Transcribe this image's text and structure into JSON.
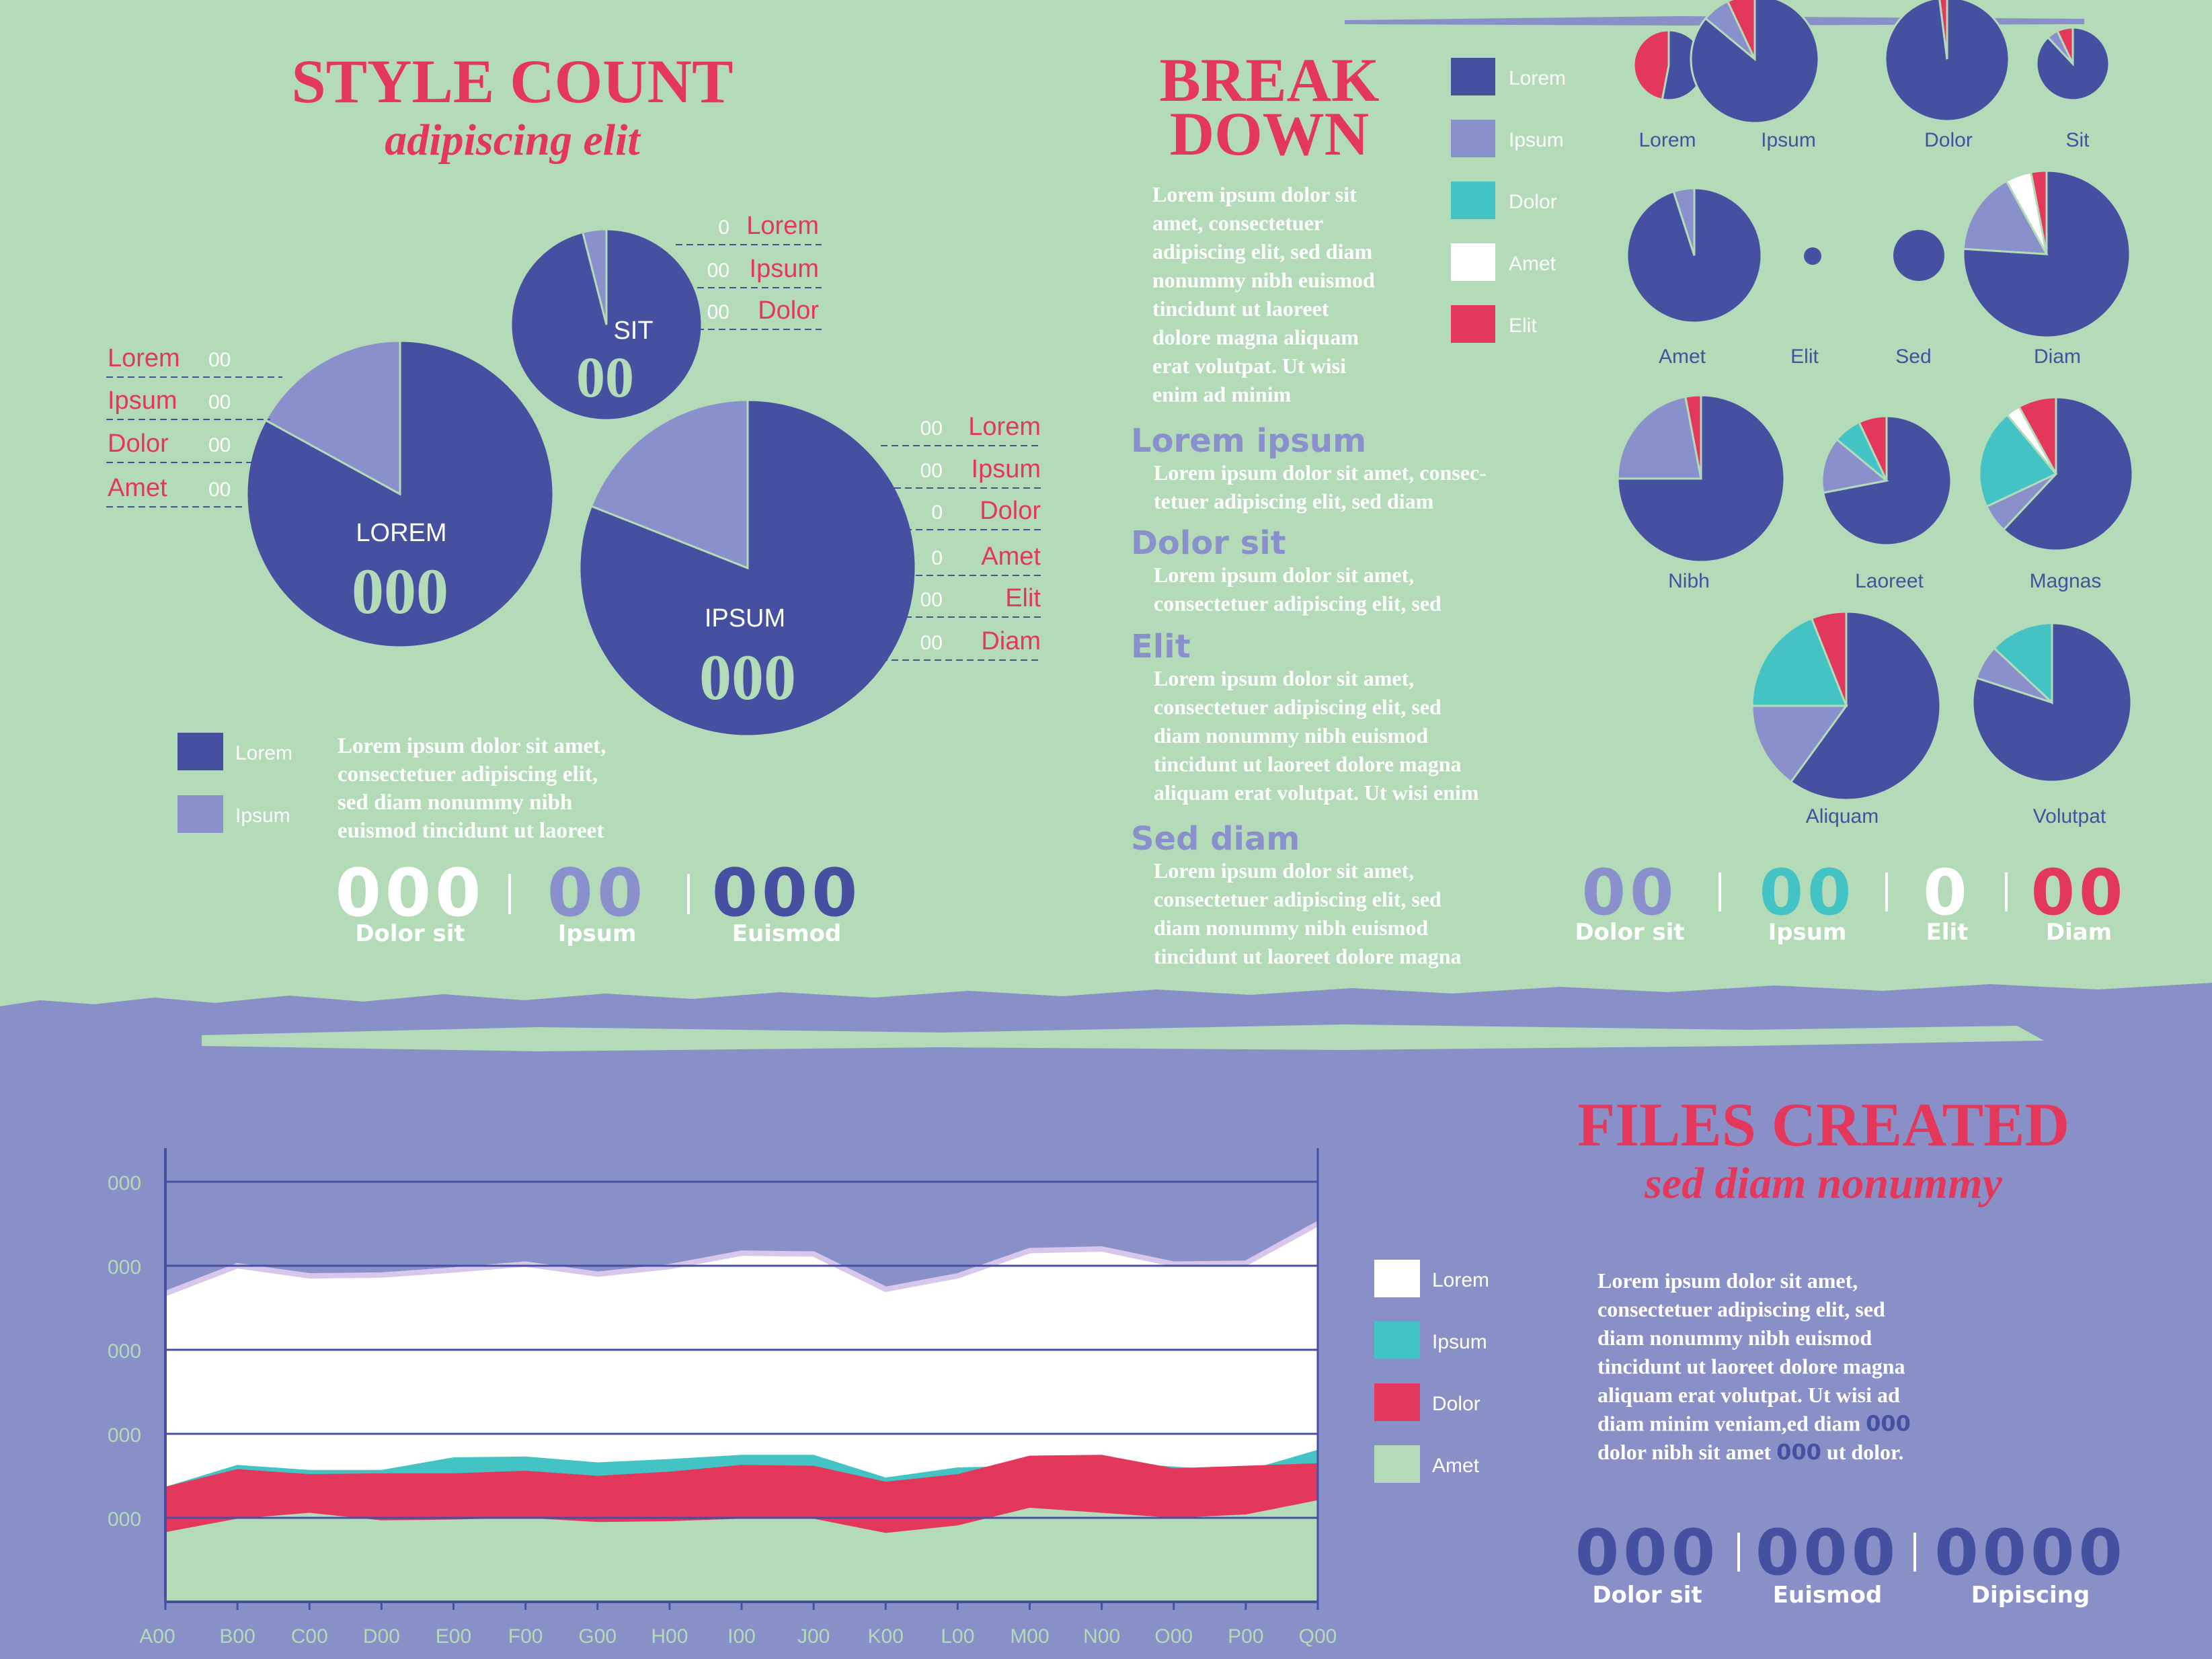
{
  "colors": {
    "bg_top": "#b3dbb7",
    "bg_bottom": "#8990c8",
    "dark_blue": "#4650a0",
    "light_blue": "#8a90cc",
    "teal": "#43c3c3",
    "red": "#e3385c",
    "white": "#ffffff",
    "green": "#b3dbb7"
  },
  "style_count": {
    "title": "STYLE COUNT",
    "subtitle": "adipiscing elit",
    "pie_lorem": {
      "label": "LOREM",
      "value": "000"
    },
    "pie_ipsum": {
      "label": "IPSUM",
      "value": "000"
    },
    "pie_sit": {
      "label": "SIT",
      "value": "00"
    },
    "callouts_left": [
      {
        "label": "Lorem",
        "value": "00"
      },
      {
        "label": "Ipsum",
        "value": "00"
      },
      {
        "label": "Dolor",
        "value": "00"
      },
      {
        "label": "Amet",
        "value": "00"
      }
    ],
    "callouts_sit": [
      {
        "label": "Lorem",
        "value": "0"
      },
      {
        "label": "Ipsum",
        "value": "00"
      },
      {
        "label": "Dolor",
        "value": "00"
      }
    ],
    "callouts_right": [
      {
        "label": "Lorem",
        "value": "00"
      },
      {
        "label": "Ipsum",
        "value": "00"
      },
      {
        "label": "Dolor",
        "value": "0"
      },
      {
        "label": "Amet",
        "value": "0"
      },
      {
        "label": "Elit",
        "value": "00"
      },
      {
        "label": "Diam",
        "value": "00"
      }
    ],
    "legend": [
      "Lorem",
      "Ipsum"
    ],
    "paragraph": [
      "Lorem ipsum dolor sit amet,",
      "consectetuer adipiscing elit,",
      "sed diam nonummy nibh",
      "euismod tincidunt ut laoreet"
    ],
    "stats": [
      {
        "value": "000",
        "label": "Dolor sit",
        "color": "#ffffff"
      },
      {
        "value": "00",
        "label": "Ipsum",
        "color": "#8a90cc"
      },
      {
        "value": "000",
        "label": "Euismod",
        "color": "#4650a0"
      }
    ]
  },
  "breakdown": {
    "title": [
      "BREAK",
      "DOWN"
    ],
    "intro": [
      "Lorem ipsum dolor sit",
      "amet, consectetuer",
      "adipiscing elit, sed diam",
      "nonummy nibh euismod",
      "tincidunt ut laoreet",
      "dolore magna aliquam",
      "erat volutpat. Ut wisi",
      "enim ad minim"
    ],
    "legend": [
      "Lorem",
      "Ipsum",
      "Dolor",
      "Amet",
      "Elit"
    ],
    "sections": [
      {
        "heading": "Lorem ipsum",
        "lines": [
          "Lorem ipsum dolor sit amet, consec-",
          "tetuer adipiscing elit, sed diam"
        ]
      },
      {
        "heading": "Dolor sit",
        "lines": [
          "Lorem ipsum dolor sit amet,",
          "consectetuer adipiscing elit, sed"
        ]
      },
      {
        "heading": "Elit",
        "lines": [
          "Lorem ipsum dolor sit amet,",
          "consectetuer adipiscing elit, sed",
          "diam nonummy nibh euismod",
          "tincidunt ut laoreet dolore magna",
          "aliquam erat volutpat. Ut wisi enim"
        ]
      },
      {
        "heading": "Sed diam",
        "lines": [
          "Lorem ipsum dolor sit amet,",
          "consectetuer adipiscing elit, sed",
          "diam nonummy nibh euismod",
          "tincidunt ut laoreet dolore magna"
        ]
      }
    ],
    "stats": [
      {
        "value": "00",
        "label": "Dolor sit",
        "color": "#8a90cc"
      },
      {
        "value": "00",
        "label": "Ipsum",
        "color": "#43c3c3"
      },
      {
        "value": "0",
        "label": "Elit",
        "color": "#ffffff"
      },
      {
        "value": "00",
        "label": "Diam",
        "color": "#e3385c"
      }
    ]
  },
  "files_created": {
    "title": "FILES CREATED",
    "subtitle": "sed diam nonummy",
    "legend": [
      "Lorem",
      "Ipsum",
      "Dolor",
      "Amet"
    ],
    "paragraph": [
      [
        "Lorem ipsum dolor sit amet,"
      ],
      [
        "consectetuer adipiscing elit, sed"
      ],
      [
        "diam nonummy nibh euismod"
      ],
      [
        "tincidunt ut laoreet dolore magna"
      ],
      [
        "aliquam erat volutpat. Ut wisi ad"
      ],
      [
        "diam minim veniam,ed diam ",
        "000"
      ],
      [
        "dolor nibh sit amet ",
        "000",
        " ut dolor."
      ]
    ],
    "stats": [
      {
        "value": "000",
        "label": "Dolor sit"
      },
      {
        "value": "000",
        "label": "Euismod"
      },
      {
        "value": "0000",
        "label": "Dipiscing"
      }
    ]
  },
  "chart_data": [
    {
      "type": "pie",
      "name": "LOREM",
      "slices": [
        {
          "label": "Lorem",
          "value": 83
        },
        {
          "label": "Ipsum",
          "value": 17
        }
      ]
    },
    {
      "type": "pie",
      "name": "IPSUM",
      "slices": [
        {
          "label": "Lorem",
          "value": 81
        },
        {
          "label": "Ipsum",
          "value": 19
        }
      ]
    },
    {
      "type": "pie",
      "name": "SIT",
      "slices": [
        {
          "label": "Lorem",
          "value": 96
        },
        {
          "label": "Ipsum",
          "value": 4
        }
      ]
    },
    {
      "type": "pie",
      "name": "breakdown",
      "series_colors": {
        "Lorem": "#4650a0",
        "Ipsum": "#8a90cc",
        "Dolor": "#43c3c3",
        "Amet": "#ffffff",
        "Elit": "#e3385c"
      },
      "pies": [
        {
          "label": "Lorem",
          "slices": {
            "Lorem": 53,
            "Elit": 47
          }
        },
        {
          "label": "Ipsum",
          "slices": {
            "Lorem": 86,
            "Ipsum": 7,
            "Elit": 7
          }
        },
        {
          "label": "Dolor",
          "slices": {
            "Lorem": 98,
            "Elit": 2
          }
        },
        {
          "label": "Sit",
          "slices": {
            "Lorem": 88,
            "Ipsum": 5,
            "Elit": 7
          }
        },
        {
          "label": "Amet",
          "slices": {
            "Lorem": 95,
            "Ipsum": 5
          }
        },
        {
          "label": "Elit",
          "slices": {
            "Lorem": 100
          }
        },
        {
          "label": "Sed",
          "slices": {
            "Lorem": 100
          }
        },
        {
          "label": "Diam",
          "slices": {
            "Lorem": 76,
            "Ipsum": 16,
            "Elit": 3,
            "Amet": 5
          }
        },
        {
          "label": "Nibh",
          "slices": {
            "Lorem": 75,
            "Ipsum": 22,
            "Elit": 3
          }
        },
        {
          "label": "Laoreet",
          "slices": {
            "Lorem": 72,
            "Ipsum": 14,
            "Dolor": 7,
            "Elit": 7
          }
        },
        {
          "label": "Magnas",
          "slices": {
            "Lorem": 62,
            "Ipsum": 6,
            "Dolor": 21,
            "Amet": 3,
            "Elit": 8
          }
        },
        {
          "label": "Aliquam",
          "slices": {
            "Lorem": 60,
            "Ipsum": 15,
            "Dolor": 19,
            "Elit": 6
          }
        },
        {
          "label": "Volutpat",
          "slices": {
            "Lorem": 80,
            "Ipsum": 7,
            "Dolor": 13
          }
        }
      ]
    },
    {
      "type": "area",
      "name": "files_created",
      "categories": [
        "A00",
        "B00",
        "C00",
        "D00",
        "E00",
        "F00",
        "G00",
        "H00",
        "I00",
        "J00",
        "K00",
        "L00",
        "M00",
        "N00",
        "O00",
        "P00",
        "Q00"
      ],
      "y_tick_labels": [
        "000",
        "000",
        "000",
        "000",
        "000"
      ],
      "ylim": [
        0,
        5.4
      ],
      "grid": true,
      "legend_position": "right",
      "series_boundaries": [
        {
          "name": "Amet",
          "top": [
            0.83,
            0.99,
            1.06,
            0.97,
            0.98,
            1.0,
            0.95,
            0.96,
            0.99,
            0.99,
            0.82,
            0.91,
            1.12,
            1.06,
            1.0,
            1.04,
            1.21
          ]
        },
        {
          "name": "Dolor",
          "top": [
            1.37,
            1.58,
            1.52,
            1.53,
            1.53,
            1.56,
            1.5,
            1.55,
            1.63,
            1.62,
            1.43,
            1.52,
            1.74,
            1.75,
            1.59,
            1.62,
            1.65
          ]
        },
        {
          "name": "Ipsum",
          "top": [
            1.37,
            1.63,
            1.57,
            1.57,
            1.72,
            1.73,
            1.66,
            1.7,
            1.75,
            1.75,
            1.48,
            1.6,
            1.62,
            1.67,
            1.61,
            1.56,
            1.81
          ]
        },
        {
          "name": "Lorem",
          "top": [
            3.67,
            4.0,
            3.88,
            3.89,
            3.95,
            4.02,
            3.9,
            3.99,
            4.15,
            4.14,
            3.72,
            3.88,
            4.18,
            4.2,
            4.02,
            4.03,
            4.5
          ]
        }
      ]
    }
  ]
}
